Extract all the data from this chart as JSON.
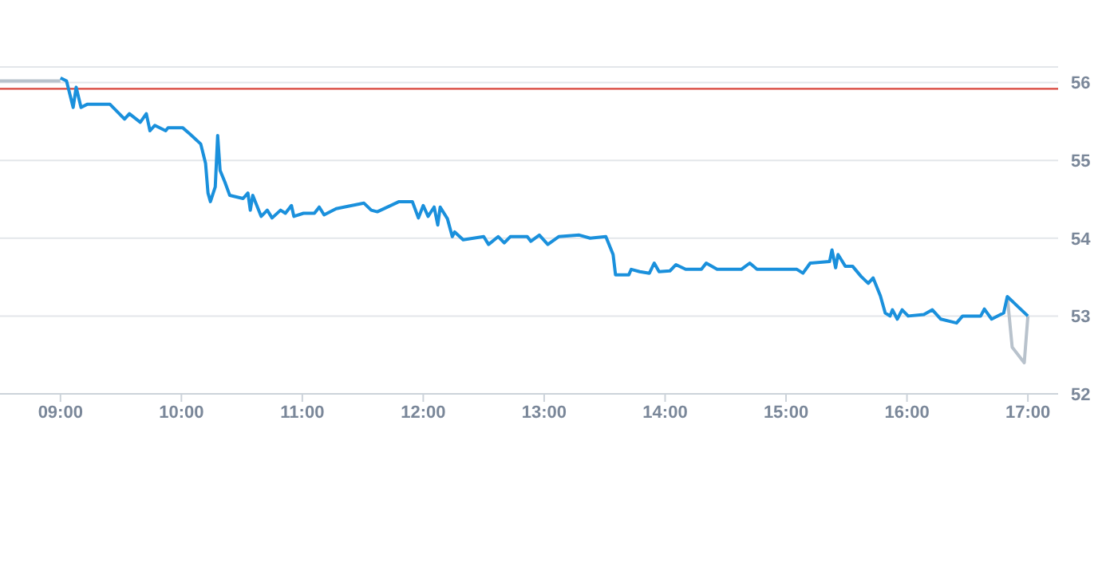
{
  "chart_data": {
    "type": "line",
    "xlim": [
      8.5,
      17.25
    ],
    "xticks": [
      {
        "value": 9,
        "label": "09:00"
      },
      {
        "value": 10,
        "label": "10:00"
      },
      {
        "value": 11,
        "label": "11:00"
      },
      {
        "value": 12,
        "label": "12:00"
      },
      {
        "value": 13,
        "label": "13:00"
      },
      {
        "value": 14,
        "label": "14:00"
      },
      {
        "value": 15,
        "label": "15:00"
      },
      {
        "value": 16,
        "label": "16:00"
      },
      {
        "value": 17,
        "label": "17:00"
      }
    ],
    "ylim": [
      52,
      56.2
    ],
    "yticks": [
      52,
      53,
      54,
      55,
      56
    ],
    "grid": "y",
    "legend": false,
    "marker": "none",
    "line_style": "solid",
    "ref_lines": [
      {
        "axis": "y",
        "value": 55.92,
        "color": "#d9453b"
      }
    ],
    "series": [
      {
        "color": "#b8c2cc",
        "x": [
          8.5,
          9.0,
          12.0,
          16.83,
          16.87,
          16.92,
          16.97,
          17.0
        ],
        "values": [
          56.02,
          56.02,
          null,
          53.25,
          52.6,
          52.5,
          52.4,
          53.0
        ]
      },
      {
        "color": "#1a90dc",
        "x": [
          9.0,
          9.05,
          9.105,
          9.13,
          9.17,
          9.22,
          9.41,
          9.53,
          9.57,
          9.66,
          9.71,
          9.74,
          9.78,
          9.87,
          9.89,
          10.01,
          10.07,
          10.16,
          10.2,
          10.22,
          10.24,
          10.28,
          10.3,
          10.32,
          10.36,
          10.4,
          10.51,
          10.55,
          10.57,
          10.59,
          10.66,
          10.71,
          10.75,
          10.82,
          10.86,
          10.91,
          10.93,
          11.01,
          11.1,
          11.14,
          11.18,
          11.28,
          11.41,
          11.51,
          11.57,
          11.62,
          11.8,
          11.91,
          11.96,
          12.0,
          12.04,
          12.09,
          12.12,
          12.14,
          12.2,
          12.24,
          12.26,
          12.33,
          12.5,
          12.54,
          12.62,
          12.67,
          12.72,
          12.86,
          12.89,
          12.96,
          13.03,
          13.12,
          13.29,
          13.38,
          13.51,
          13.57,
          13.59,
          13.7,
          13.72,
          13.79,
          13.87,
          13.91,
          13.95,
          14.04,
          14.09,
          14.17,
          14.3,
          14.34,
          14.43,
          14.63,
          14.7,
          14.76,
          15.09,
          15.14,
          15.2,
          15.36,
          15.38,
          15.41,
          15.43,
          15.49,
          15.55,
          15.62,
          15.68,
          15.72,
          15.78,
          15.82,
          15.86,
          15.88,
          15.92,
          15.96,
          16.01,
          16.14,
          16.21,
          16.28,
          16.41,
          16.46,
          16.61,
          16.64,
          16.7,
          16.8,
          16.83,
          17.0
        ],
        "values": [
          56.06,
          56.02,
          55.68,
          55.94,
          55.68,
          55.72,
          55.72,
          55.53,
          55.6,
          55.49,
          55.6,
          55.38,
          55.45,
          55.38,
          55.42,
          55.42,
          55.34,
          55.21,
          54.96,
          54.58,
          54.47,
          54.66,
          55.32,
          54.87,
          54.72,
          54.55,
          54.51,
          54.58,
          54.36,
          54.55,
          54.28,
          54.36,
          54.26,
          54.36,
          54.32,
          54.42,
          54.28,
          54.32,
          54.32,
          54.4,
          54.3,
          54.38,
          54.42,
          54.45,
          54.36,
          54.34,
          54.47,
          54.47,
          54.26,
          54.42,
          54.28,
          54.4,
          54.17,
          54.4,
          54.25,
          54.02,
          54.08,
          53.98,
          54.02,
          53.92,
          54.02,
          53.94,
          54.02,
          54.02,
          53.96,
          54.04,
          53.92,
          54.02,
          54.04,
          54.0,
          54.02,
          53.79,
          53.53,
          53.53,
          53.6,
          53.57,
          53.55,
          53.68,
          53.57,
          53.58,
          53.66,
          53.6,
          53.6,
          53.68,
          53.6,
          53.6,
          53.68,
          53.6,
          53.6,
          53.55,
          53.68,
          53.7,
          53.85,
          53.62,
          53.79,
          53.64,
          53.64,
          53.51,
          53.42,
          53.49,
          53.26,
          53.04,
          53.0,
          53.08,
          52.96,
          53.08,
          53.0,
          53.02,
          53.08,
          52.96,
          52.91,
          53.0,
          53.0,
          53.09,
          52.96,
          53.04,
          53.25,
          53.0
        ]
      }
    ]
  }
}
